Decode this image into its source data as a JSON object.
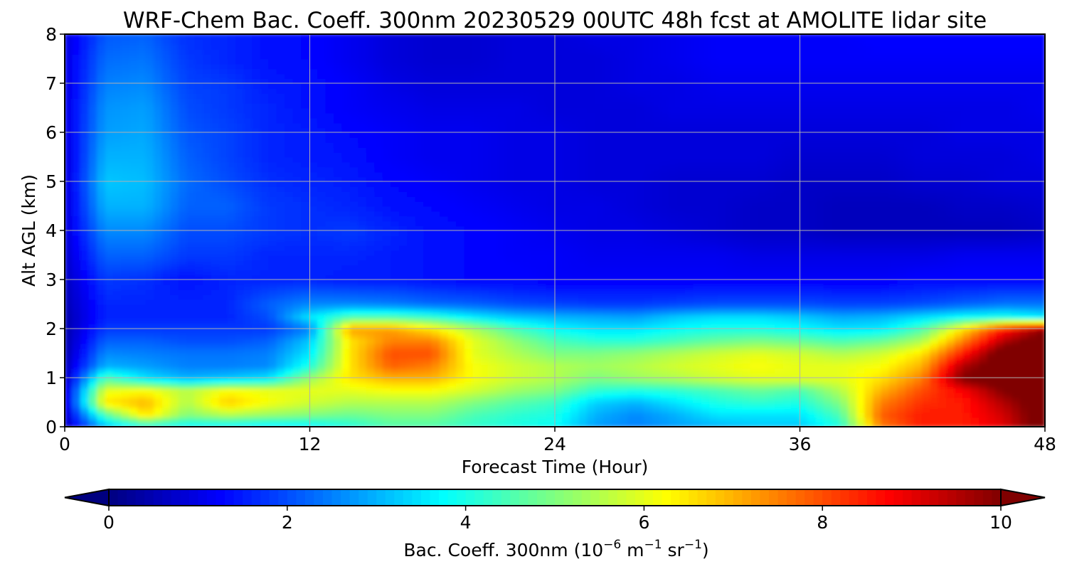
{
  "chart_data": {
    "type": "heatmap",
    "title": "WRF-Chem Bac. Coeff. 300nm  20230529 00UTC 48h fcst at AMOLITE lidar site",
    "xlabel": "Forecast Time (Hour)",
    "ylabel": "Alt AGL (km)",
    "xlim": [
      0,
      48
    ],
    "ylim": [
      0,
      8
    ],
    "xticks": [
      0,
      12,
      24,
      36,
      48
    ],
    "yticks": [
      0,
      1,
      2,
      3,
      4,
      5,
      6,
      7,
      8
    ],
    "grid": true,
    "colormap": "jet",
    "colorbar": {
      "orientation": "horizontal",
      "position": "bottom",
      "label_main": "Bac. Coeff. 300nm  (10",
      "label_exp1": "−6",
      "label_mid": " m",
      "label_exp2": "−1",
      "label_mid2": " sr",
      "label_exp3": "−1",
      "label_end": ")",
      "range": [
        0,
        10
      ],
      "ticks": [
        0,
        2,
        4,
        6,
        8,
        10
      ],
      "extend": "both"
    },
    "x": [
      0,
      2,
      4,
      6,
      8,
      10,
      12,
      14,
      16,
      18,
      20,
      22,
      24,
      26,
      28,
      30,
      32,
      34,
      36,
      38,
      40,
      42,
      44,
      46,
      48
    ],
    "y": [
      0,
      0.25,
      0.5,
      0.75,
      1,
      1.25,
      1.5,
      1.75,
      2,
      2.25,
      2.5,
      3,
      3.5,
      4,
      4.5,
      5,
      5.5,
      6,
      6.5,
      7,
      7.5,
      8
    ],
    "z": [
      [
        0.5,
        3.0,
        3.8,
        3.6,
        3.5,
        3.4,
        3.5,
        4.0,
        4.5,
        4.5,
        4.2,
        4.0,
        3.8,
        2.8,
        2.5,
        2.8,
        3.0,
        3.2,
        3.2,
        4.0,
        7.5,
        8.5,
        8.5,
        9.0,
        10.5
      ],
      [
        0.6,
        4.5,
        6.5,
        5.0,
        5.5,
        5.2,
        5.0,
        4.8,
        5.0,
        5.0,
        4.5,
        4.2,
        4.0,
        3.0,
        2.6,
        3.0,
        3.5,
        3.5,
        3.5,
        4.5,
        7.8,
        8.5,
        8.5,
        9.2,
        10.5
      ],
      [
        0.6,
        6.5,
        7.0,
        5.5,
        6.8,
        6.2,
        5.8,
        5.5,
        5.5,
        5.5,
        5.0,
        4.6,
        4.3,
        3.3,
        3.0,
        3.5,
        4.0,
        4.2,
        4.0,
        5.0,
        7.5,
        8.3,
        8.5,
        9.5,
        10.5
      ],
      [
        0.6,
        6.0,
        6.2,
        5.5,
        6.2,
        6.0,
        6.0,
        6.0,
        6.2,
        6.2,
        5.8,
        5.3,
        5.0,
        4.2,
        4.0,
        4.2,
        4.5,
        4.8,
        4.5,
        5.5,
        7.0,
        8.0,
        8.8,
        10.0,
        10.5
      ],
      [
        0.5,
        4.5,
        3.5,
        3.0,
        3.2,
        3.5,
        5.2,
        6.5,
        7.0,
        7.0,
        6.2,
        5.8,
        5.5,
        5.0,
        5.3,
        5.5,
        5.8,
        6.0,
        6.0,
        6.0,
        6.5,
        7.5,
        10.0,
        10.5,
        10.5
      ],
      [
        0.5,
        3.0,
        2.8,
        2.5,
        2.5,
        2.6,
        4.0,
        6.5,
        7.8,
        7.5,
        6.2,
        5.8,
        5.5,
        5.3,
        5.5,
        5.8,
        6.0,
        6.2,
        6.0,
        6.0,
        6.2,
        7.0,
        9.5,
        10.5,
        10.5
      ],
      [
        0.4,
        2.6,
        2.5,
        2.4,
        2.4,
        2.5,
        3.5,
        6.5,
        8.0,
        8.0,
        6.0,
        5.5,
        5.0,
        5.0,
        5.2,
        5.5,
        5.8,
        6.0,
        5.8,
        5.5,
        5.8,
        6.5,
        8.5,
        10.5,
        10.5
      ],
      [
        0.4,
        2.2,
        2.2,
        2.0,
        2.0,
        2.2,
        3.2,
        6.5,
        7.5,
        7.5,
        6.0,
        5.2,
        4.5,
        4.2,
        4.2,
        4.5,
        4.8,
        5.0,
        4.8,
        4.5,
        4.8,
        5.5,
        7.5,
        9.5,
        10.5
      ],
      [
        0.4,
        1.8,
        1.8,
        1.8,
        1.8,
        1.8,
        2.5,
        7.2,
        7.2,
        6.5,
        5.5,
        4.5,
        3.8,
        3.5,
        3.5,
        3.8,
        4.0,
        4.0,
        3.8,
        3.5,
        3.6,
        4.5,
        6.5,
        8.5,
        9.8
      ],
      [
        0.4,
        1.6,
        1.6,
        1.6,
        1.6,
        2.0,
        3.5,
        4.5,
        4.5,
        4.2,
        3.6,
        3.2,
        3.0,
        2.9,
        2.8,
        3.2,
        3.4,
        3.4,
        3.2,
        2.9,
        3.0,
        3.4,
        3.8,
        4.0,
        3.6
      ],
      [
        0.5,
        1.6,
        1.6,
        1.6,
        1.6,
        2.2,
        2.6,
        2.6,
        2.5,
        2.3,
        2.2,
        2.0,
        1.9,
        1.8,
        1.8,
        1.9,
        2.0,
        2.0,
        2.0,
        1.9,
        1.9,
        2.0,
        2.2,
        2.4,
        2.4
      ],
      [
        0.6,
        1.8,
        1.7,
        1.4,
        1.6,
        1.6,
        1.6,
        1.5,
        1.5,
        1.4,
        1.3,
        1.3,
        1.2,
        1.2,
        1.2,
        1.2,
        1.2,
        1.2,
        1.2,
        1.2,
        1.2,
        1.3,
        1.3,
        1.3,
        1.3
      ],
      [
        0.7,
        2.2,
        2.2,
        1.8,
        1.8,
        1.6,
        1.6,
        1.6,
        1.5,
        1.4,
        1.3,
        1.2,
        1.2,
        1.1,
        1.1,
        1.1,
        1.1,
        1.0,
        1.0,
        1.0,
        1.0,
        1.0,
        1.1,
        1.1,
        1.1
      ],
      [
        0.8,
        2.6,
        2.6,
        2.0,
        2.0,
        1.8,
        1.7,
        1.8,
        1.6,
        1.4,
        1.3,
        1.2,
        1.1,
        1.0,
        1.0,
        0.9,
        0.8,
        0.7,
        0.7,
        0.6,
        0.6,
        0.6,
        0.6,
        0.6,
        0.7
      ],
      [
        0.8,
        3.0,
        3.0,
        2.2,
        2.2,
        1.8,
        1.7,
        1.6,
        1.4,
        1.3,
        1.2,
        1.1,
        1.0,
        1.0,
        0.9,
        0.8,
        0.8,
        0.7,
        0.7,
        0.6,
        0.6,
        0.6,
        0.7,
        0.7,
        0.8
      ],
      [
        0.8,
        3.2,
        3.1,
        2.3,
        2.0,
        1.7,
        1.6,
        1.5,
        1.3,
        1.2,
        1.1,
        1.0,
        1.0,
        0.9,
        0.9,
        0.8,
        0.8,
        0.8,
        0.7,
        0.7,
        0.7,
        0.8,
        0.8,
        0.9,
        0.9
      ],
      [
        0.8,
        3.0,
        3.0,
        2.2,
        1.9,
        1.6,
        1.5,
        1.4,
        1.2,
        1.1,
        1.1,
        1.0,
        1.0,
        0.9,
        0.9,
        0.9,
        0.9,
        0.9,
        0.8,
        0.8,
        0.8,
        0.9,
        0.9,
        0.9,
        1.0
      ],
      [
        0.9,
        2.8,
        2.9,
        2.1,
        1.9,
        1.6,
        1.5,
        1.3,
        1.2,
        1.1,
        1.1,
        1.0,
        1.0,
        0.9,
        0.9,
        0.9,
        0.9,
        0.9,
        0.9,
        0.9,
        0.9,
        0.9,
        1.0,
        1.0,
        1.0
      ],
      [
        0.9,
        2.7,
        2.8,
        2.0,
        1.8,
        1.6,
        1.4,
        1.2,
        1.1,
        1.0,
        1.0,
        1.0,
        0.9,
        0.9,
        0.9,
        1.0,
        1.0,
        1.0,
        1.0,
        1.0,
        1.0,
        1.0,
        1.0,
        1.0,
        1.1
      ],
      [
        0.9,
        2.5,
        2.6,
        1.9,
        1.8,
        1.5,
        1.4,
        1.2,
        1.0,
        0.9,
        0.9,
        0.9,
        0.9,
        0.9,
        1.0,
        1.0,
        1.1,
        1.1,
        1.1,
        1.1,
        1.1,
        1.1,
        1.1,
        1.1,
        1.1
      ],
      [
        0.9,
        2.3,
        2.4,
        1.8,
        1.6,
        1.4,
        1.3,
        1.1,
        0.9,
        0.8,
        0.8,
        0.9,
        0.9,
        0.9,
        1.0,
        1.1,
        1.2,
        1.2,
        1.2,
        1.2,
        1.2,
        1.2,
        1.2,
        1.2,
        1.2
      ],
      [
        0.9,
        2.1,
        2.2,
        1.7,
        1.6,
        1.4,
        1.3,
        1.1,
        0.9,
        0.8,
        0.8,
        0.9,
        0.9,
        1.0,
        1.0,
        1.1,
        1.2,
        1.2,
        1.2,
        1.2,
        1.3,
        1.3,
        1.3,
        1.3,
        1.3
      ]
    ]
  }
}
